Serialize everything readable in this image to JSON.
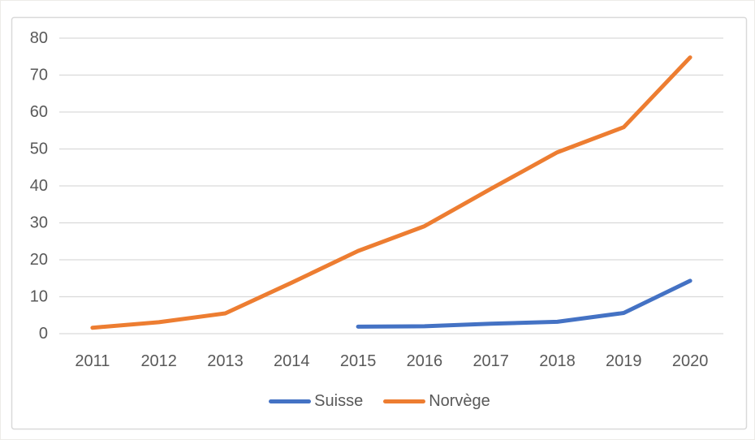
{
  "chart_data": {
    "type": "line",
    "categories": [
      "2011",
      "2012",
      "2013",
      "2014",
      "2015",
      "2016",
      "2017",
      "2018",
      "2019",
      "2020"
    ],
    "series": [
      {
        "name": "Suisse",
        "color": "#4472C4",
        "values": [
          null,
          null,
          null,
          null,
          1.9,
          2.0,
          2.7,
          3.2,
          5.6,
          14.3
        ]
      },
      {
        "name": "Norvège",
        "color": "#ED7D31",
        "values": [
          1.6,
          3.1,
          5.5,
          13.8,
          22.4,
          29.1,
          39.2,
          49.1,
          55.9,
          74.8
        ]
      }
    ],
    "title": "",
    "xlabel": "",
    "ylabel": "",
    "ylim": [
      0,
      80
    ],
    "y_ticks": [
      0,
      10,
      20,
      30,
      40,
      50,
      60,
      70,
      80
    ],
    "grid": "horizontal",
    "legend_position": "bottom-center",
    "colors": {
      "gridline": "#D9D9D9",
      "axis_line": "#D9D9D9",
      "axis_label": "#595959",
      "chart_border": "#D9D9D9",
      "background": "#FFFFFF"
    }
  }
}
